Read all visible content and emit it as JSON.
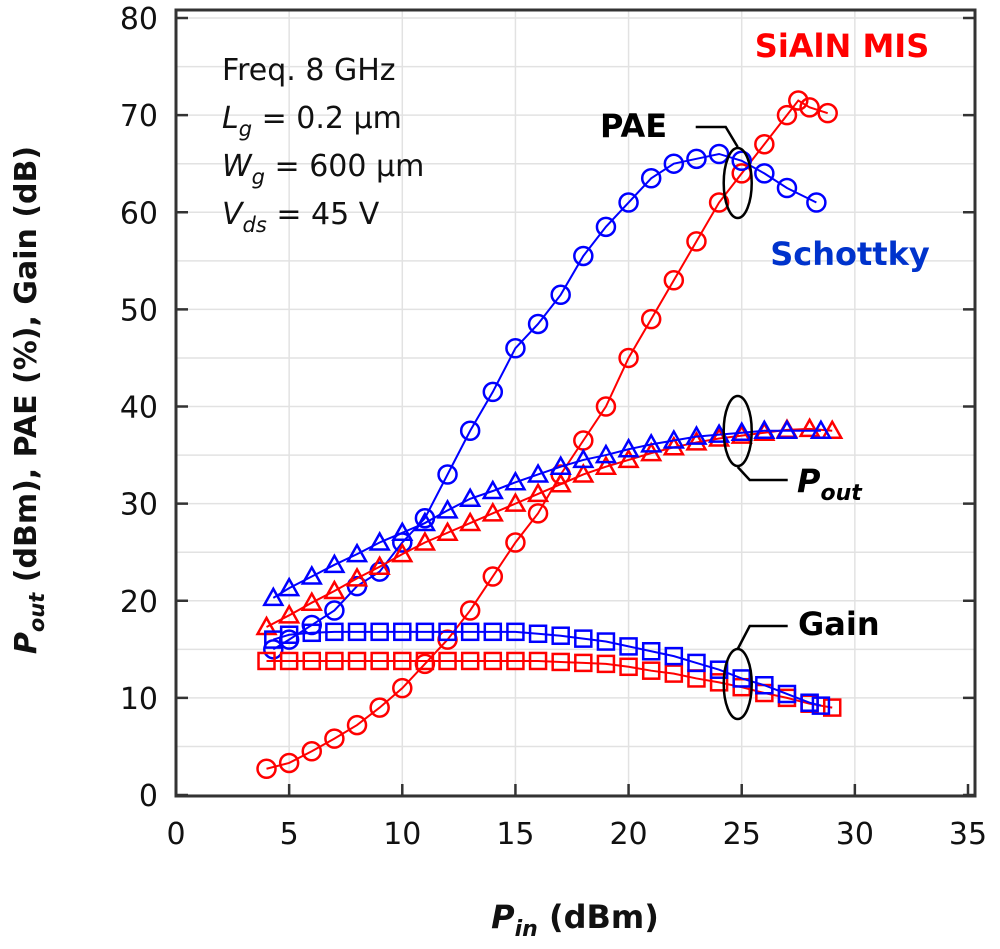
{
  "chart_data": {
    "type": "scatter",
    "xlabel": {
      "main": "P",
      "sub": "in",
      "rest": " (dBm)"
    },
    "ylabel": {
      "main": "P",
      "sub": "out",
      "rest": " (dBm), PAE (%), Gain (dB)"
    },
    "xlim": [
      0,
      35
    ],
    "ylim": [
      0,
      80
    ],
    "xticks": [
      0,
      5,
      10,
      15,
      20,
      25,
      30,
      35
    ],
    "yticks": [
      0,
      10,
      20,
      30,
      40,
      50,
      60,
      70,
      80
    ],
    "grid": true,
    "conditions": [
      {
        "main": "Freq. 8 GHz",
        "sub": "",
        "rest": ""
      },
      {
        "main": "L",
        "sub": "g",
        "rest": " = 0.2 µm"
      },
      {
        "main": "W",
        "sub": "g",
        "rest": " = 600 µm"
      },
      {
        "main": "V",
        "sub": "ds",
        "rest": " = 45 V"
      }
    ],
    "device_labels": [
      {
        "text": "SiAlN MIS",
        "color": "#ff0000"
      },
      {
        "text": "Schottky",
        "color": "#0033cc"
      }
    ],
    "annotations": [
      {
        "text": "PAE",
        "sub": ""
      },
      {
        "text": "P",
        "sub": "out"
      },
      {
        "text": "Gain",
        "sub": ""
      }
    ],
    "series": [
      {
        "device": "SiAlN MIS",
        "metric": "PAE",
        "marker": "circle",
        "color": "#ff0000",
        "x": [
          4,
          5,
          6,
          7,
          8,
          9,
          10,
          11,
          12,
          13,
          14,
          15,
          16,
          17,
          18,
          19,
          20,
          21,
          22,
          23,
          24,
          25,
          26,
          27,
          27.5,
          28,
          28.8
        ],
        "y": [
          2.7,
          3.3,
          4.5,
          5.8,
          7.2,
          9,
          11,
          13.5,
          16,
          19,
          22.5,
          26,
          29,
          33,
          36.5,
          40,
          45,
          49,
          53,
          57,
          61,
          64,
          67,
          70,
          71.5,
          70.8,
          70.2
        ]
      },
      {
        "device": "Schottky",
        "metric": "PAE",
        "marker": "circle",
        "color": "#0000ff",
        "x": [
          4.3,
          5,
          6,
          7,
          8,
          9,
          10,
          11,
          12,
          13,
          14,
          15,
          16,
          17,
          18,
          19,
          20,
          21,
          22,
          23,
          24,
          25,
          26,
          27,
          28.3
        ],
        "y": [
          15,
          16,
          17.5,
          19,
          21.5,
          23,
          26,
          28.5,
          33,
          37.5,
          41.5,
          46,
          48.5,
          51.5,
          55.5,
          58.5,
          61,
          63.5,
          65,
          65.5,
          66,
          65.3,
          64,
          62.5,
          61
        ]
      },
      {
        "device": "SiAlN MIS",
        "metric": "Pout",
        "marker": "triangle",
        "color": "#ff0000",
        "x": [
          4,
          5,
          6,
          7,
          8,
          9,
          10,
          11,
          12,
          13,
          14,
          15,
          16,
          17,
          18,
          19,
          20,
          21,
          22,
          23,
          24,
          25,
          26,
          27,
          28,
          29
        ],
        "y": [
          17.3,
          18.5,
          19.8,
          21,
          22.3,
          23.5,
          24.8,
          26,
          27,
          28,
          29,
          30,
          31,
          32,
          33,
          33.8,
          34.5,
          35.2,
          35.8,
          36.3,
          36.7,
          37,
          37.3,
          37.6,
          37.7,
          37.5
        ]
      },
      {
        "device": "Schottky",
        "metric": "Pout",
        "marker": "triangle",
        "color": "#0000ff",
        "x": [
          4.3,
          5,
          6,
          7,
          8,
          9,
          10,
          11,
          12,
          13,
          14,
          15,
          16,
          17,
          18,
          19,
          20,
          21,
          22,
          23,
          24,
          25,
          26,
          27,
          28.5
        ],
        "y": [
          20.3,
          21.3,
          22.5,
          23.7,
          24.8,
          26,
          27,
          28,
          29.3,
          30.5,
          31.3,
          32.2,
          33,
          33.8,
          34.5,
          35,
          35.6,
          36.1,
          36.5,
          36.9,
          37.1,
          37.3,
          37.5,
          37.5,
          37.5
        ]
      },
      {
        "device": "SiAlN MIS",
        "metric": "Gain",
        "marker": "square",
        "color": "#ff0000",
        "x": [
          4,
          5,
          6,
          7,
          8,
          9,
          10,
          11,
          12,
          13,
          14,
          15,
          16,
          17,
          18,
          19,
          20,
          21,
          22,
          23,
          24,
          25,
          26,
          27,
          28,
          29
        ],
        "y": [
          13.8,
          13.8,
          13.8,
          13.8,
          13.8,
          13.8,
          13.8,
          13.8,
          13.8,
          13.8,
          13.8,
          13.8,
          13.8,
          13.7,
          13.6,
          13.5,
          13.2,
          12.8,
          12.5,
          12,
          11.6,
          11.1,
          10.5,
          10,
          9.4,
          9
        ]
      },
      {
        "device": "Schottky",
        "metric": "Gain",
        "marker": "square",
        "color": "#0000ff",
        "x": [
          4.3,
          5,
          6,
          7,
          8,
          9,
          10,
          11,
          12,
          13,
          14,
          15,
          16,
          17,
          18,
          19,
          20,
          21,
          22,
          23,
          24,
          25,
          26,
          27,
          28,
          28.5
        ],
        "y": [
          16,
          16.5,
          16.7,
          16.8,
          16.8,
          16.8,
          16.8,
          16.8,
          16.8,
          16.8,
          16.8,
          16.8,
          16.6,
          16.4,
          16.1,
          15.8,
          15.3,
          14.8,
          14.3,
          13.6,
          12.9,
          12,
          11.3,
          10.4,
          9.5,
          9.2
        ]
      }
    ]
  }
}
